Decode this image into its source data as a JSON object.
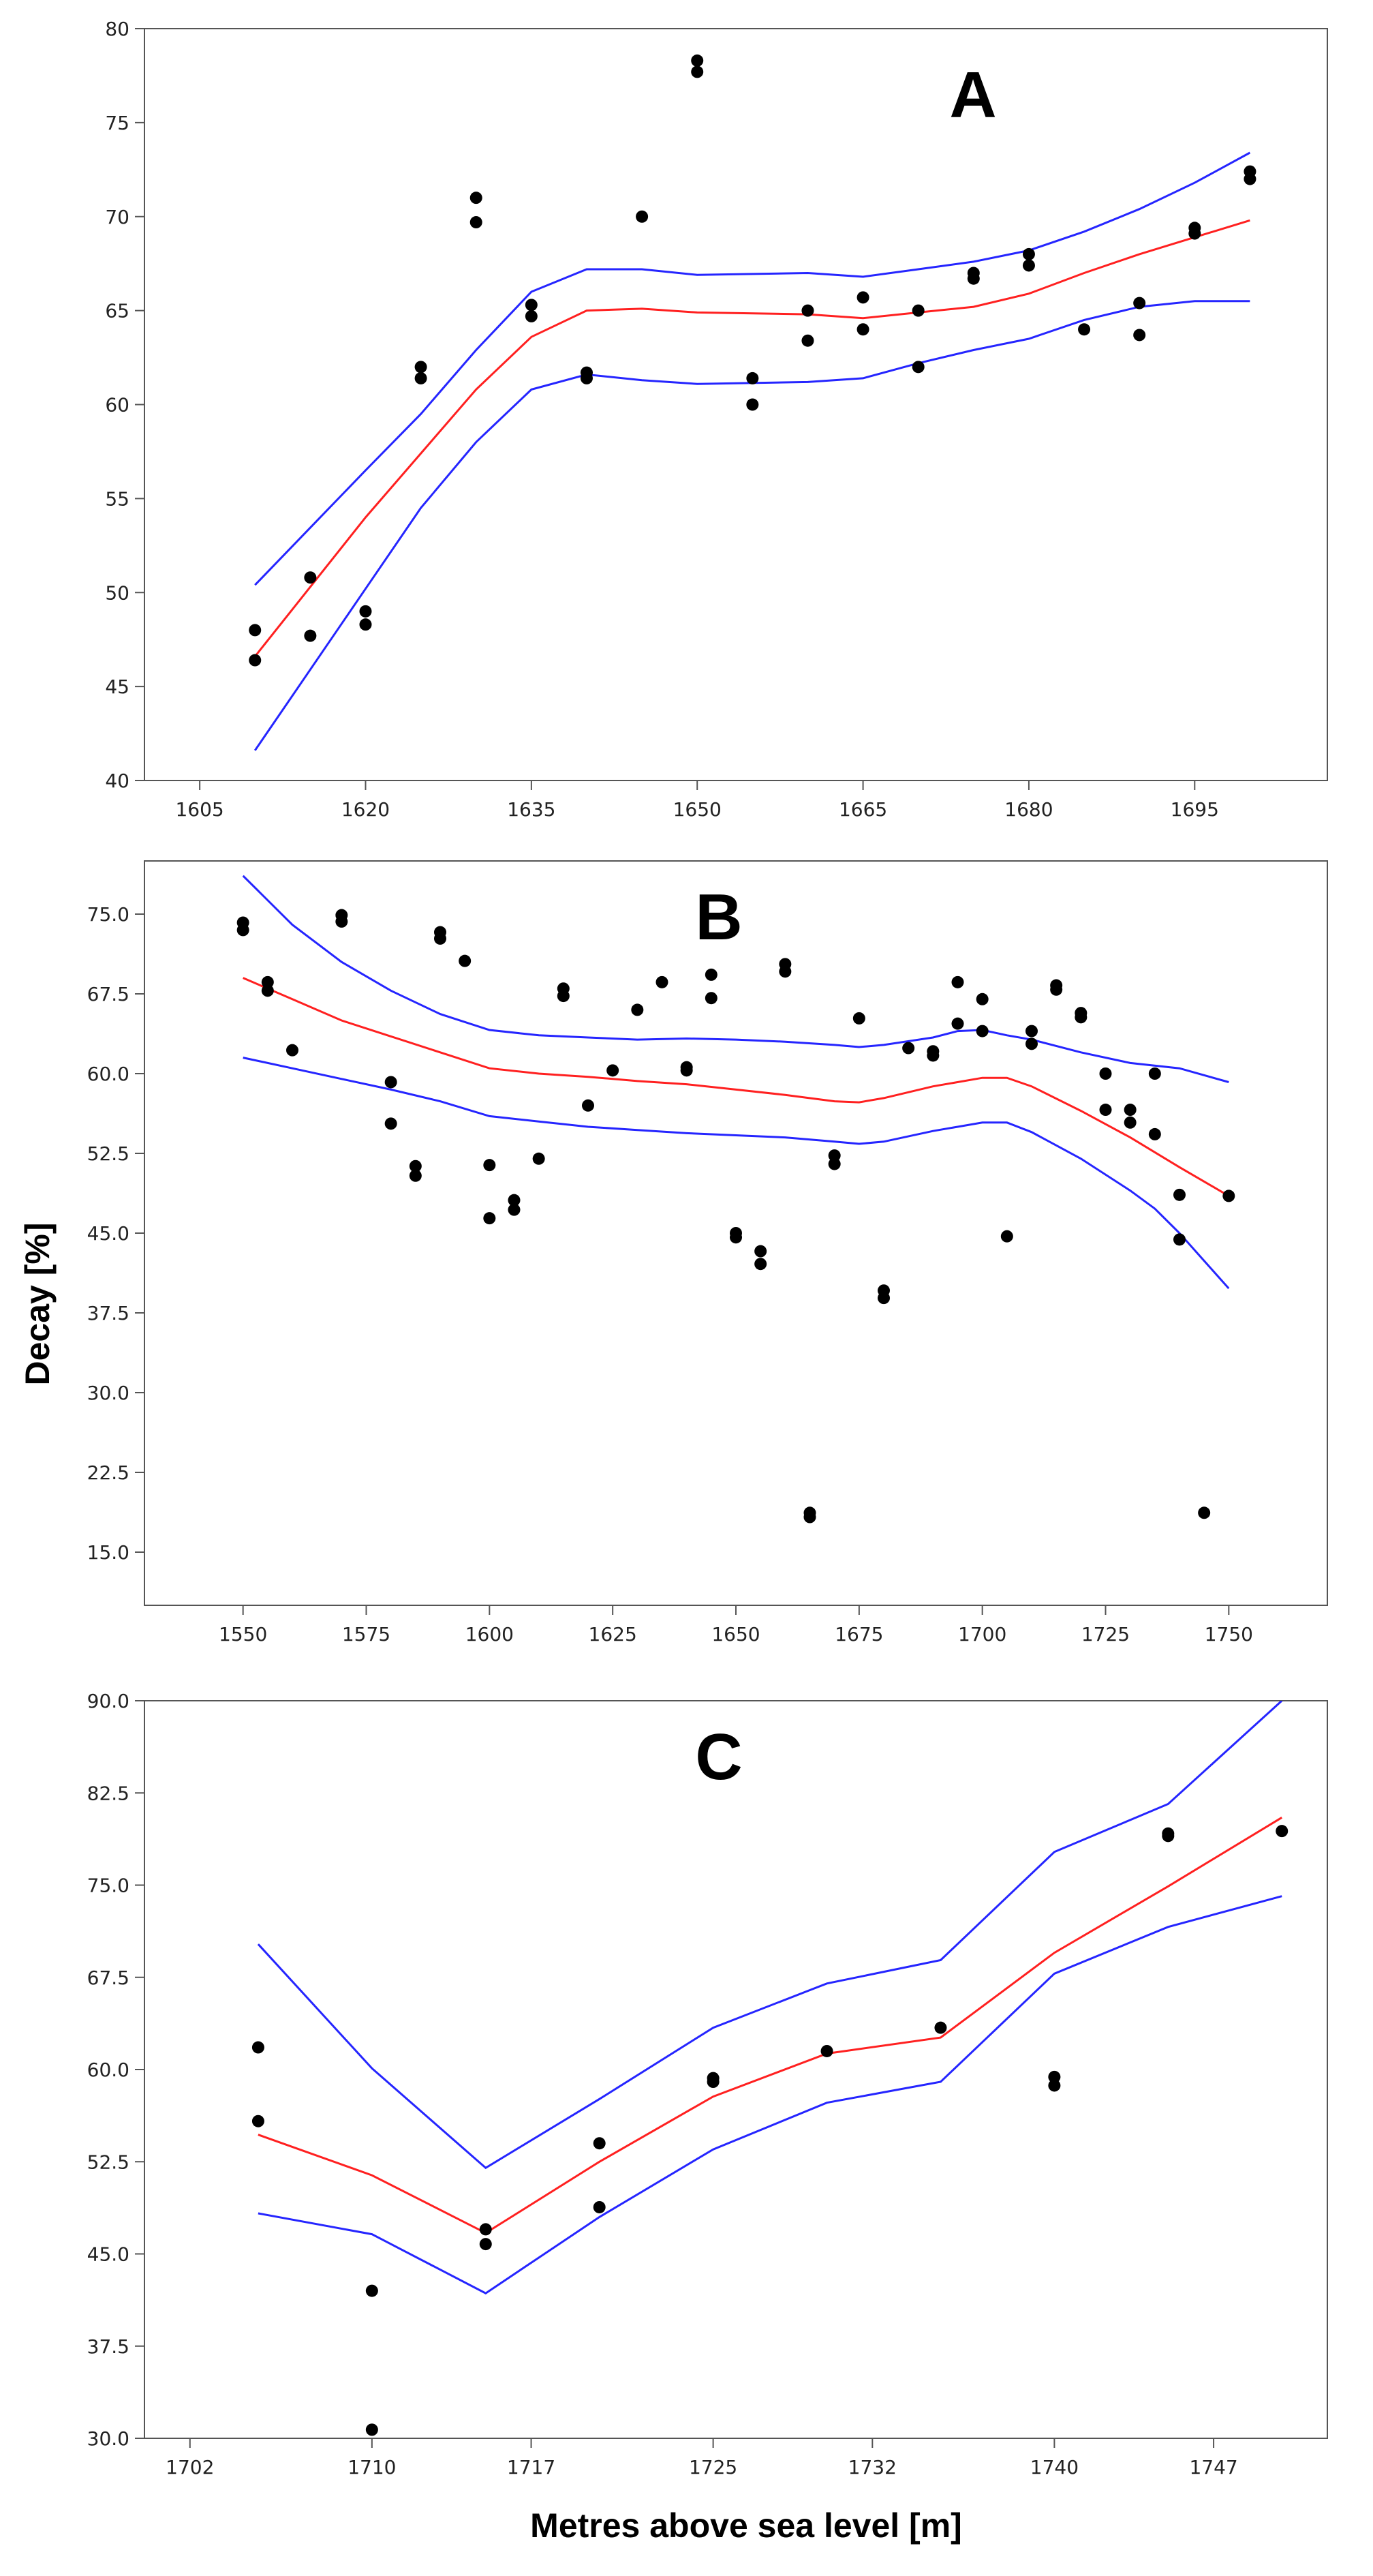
{
  "figure": {
    "ylabel": "Decay [%]",
    "xlabel": "Metres above sea level [m]"
  },
  "colors": {
    "fit": "#ff2020",
    "ci": "#2525ff",
    "points": "#000000",
    "frame": "#555555"
  },
  "chart_data": [
    {
      "type": "scatter",
      "panel": "A",
      "xlim": [
        1600,
        1707
      ],
      "ylim": [
        40,
        80
      ],
      "xticks": [
        "1605",
        "1620",
        "1635",
        "1650",
        "1665",
        "1680",
        "1695"
      ],
      "yticks": [
        "40",
        "45",
        "50",
        "55",
        "60",
        "65",
        "70",
        "75",
        "80"
      ],
      "points": [
        [
          1610,
          48.0
        ],
        [
          1610,
          46.4
        ],
        [
          1615,
          50.8
        ],
        [
          1615,
          47.7
        ],
        [
          1620,
          49.0
        ],
        [
          1620,
          48.3
        ],
        [
          1625,
          62.0
        ],
        [
          1625,
          61.4
        ],
        [
          1630,
          71.0
        ],
        [
          1630,
          69.7
        ],
        [
          1635,
          65.3
        ],
        [
          1635,
          64.7
        ],
        [
          1640,
          61.7
        ],
        [
          1640,
          61.4
        ],
        [
          1645,
          70.0
        ],
        [
          1650,
          78.3
        ],
        [
          1650,
          77.7
        ],
        [
          1655,
          61.4
        ],
        [
          1655,
          60.0
        ],
        [
          1660,
          65.0
        ],
        [
          1660,
          63.4
        ],
        [
          1665,
          65.7
        ],
        [
          1665,
          64.0
        ],
        [
          1670,
          65.0
        ],
        [
          1670,
          62.0
        ],
        [
          1675,
          67.0
        ],
        [
          1675,
          66.7
        ],
        [
          1680,
          68.0
        ],
        [
          1680,
          67.4
        ],
        [
          1685,
          64.0
        ],
        [
          1690,
          65.4
        ],
        [
          1690,
          63.7
        ],
        [
          1695,
          69.4
        ],
        [
          1695,
          69.1
        ],
        [
          1700,
          72.4
        ],
        [
          1700,
          72.0
        ]
      ],
      "fit": [
        [
          1610,
          46.6
        ],
        [
          1620,
          54.0
        ],
        [
          1630,
          60.8
        ],
        [
          1635,
          63.6
        ],
        [
          1640,
          65.0
        ],
        [
          1645,
          65.1
        ],
        [
          1650,
          64.9
        ],
        [
          1660,
          64.8
        ],
        [
          1665,
          64.6
        ],
        [
          1670,
          64.9
        ],
        [
          1675,
          65.2
        ],
        [
          1680,
          65.9
        ],
        [
          1685,
          67.0
        ],
        [
          1690,
          68.0
        ],
        [
          1695,
          68.9
        ],
        [
          1700,
          69.8
        ]
      ],
      "upper": [
        [
          1610,
          50.4
        ],
        [
          1620,
          56.5
        ],
        [
          1625,
          59.5
        ],
        [
          1630,
          62.9
        ],
        [
          1635,
          66.0
        ],
        [
          1640,
          67.2
        ],
        [
          1645,
          67.2
        ],
        [
          1650,
          66.9
        ],
        [
          1660,
          67.0
        ],
        [
          1665,
          66.8
        ],
        [
          1670,
          67.2
        ],
        [
          1675,
          67.6
        ],
        [
          1680,
          68.2
        ],
        [
          1685,
          69.2
        ],
        [
          1690,
          70.4
        ],
        [
          1695,
          71.8
        ],
        [
          1700,
          73.4
        ]
      ],
      "lower": [
        [
          1610,
          41.6
        ],
        [
          1620,
          50.2
        ],
        [
          1625,
          54.5
        ],
        [
          1630,
          58.0
        ],
        [
          1635,
          60.8
        ],
        [
          1640,
          61.6
        ],
        [
          1645,
          61.3
        ],
        [
          1650,
          61.1
        ],
        [
          1660,
          61.2
        ],
        [
          1665,
          61.4
        ],
        [
          1670,
          62.2
        ],
        [
          1675,
          62.9
        ],
        [
          1680,
          63.5
        ],
        [
          1685,
          64.5
        ],
        [
          1690,
          65.2
        ],
        [
          1695,
          65.5
        ],
        [
          1700,
          65.5
        ]
      ]
    },
    {
      "type": "scatter",
      "panel": "B",
      "xlim": [
        1530,
        1770
      ],
      "ylim": [
        10,
        80
      ],
      "xticks": [
        "1550",
        "1575",
        "1600",
        "1625",
        "1650",
        "1675",
        "1700",
        "1725",
        "1750"
      ],
      "yticks": [
        "15.0",
        "22.5",
        "30.0",
        "37.5",
        "45.0",
        "52.5",
        "60.0",
        "67.5",
        "75.0"
      ],
      "points": [
        [
          1550,
          74.2
        ],
        [
          1550,
          73.5
        ],
        [
          1555,
          68.6
        ],
        [
          1555,
          67.8
        ],
        [
          1560,
          62.2
        ],
        [
          1570,
          74.9
        ],
        [
          1570,
          74.3
        ],
        [
          1580,
          59.2
        ],
        [
          1580,
          55.3
        ],
        [
          1585,
          51.3
        ],
        [
          1585,
          50.4
        ],
        [
          1590,
          73.3
        ],
        [
          1590,
          72.7
        ],
        [
          1595,
          70.6
        ],
        [
          1600,
          51.4
        ],
        [
          1600,
          46.4
        ],
        [
          1605,
          48.1
        ],
        [
          1605,
          47.2
        ],
        [
          1610,
          52.0
        ],
        [
          1615,
          68.0
        ],
        [
          1615,
          67.3
        ],
        [
          1620,
          57.0
        ],
        [
          1625,
          60.3
        ],
        [
          1630,
          66.0
        ],
        [
          1635,
          68.6
        ],
        [
          1640,
          60.6
        ],
        [
          1640,
          60.3
        ],
        [
          1645,
          69.3
        ],
        [
          1645,
          67.1
        ],
        [
          1650,
          45.0
        ],
        [
          1650,
          44.6
        ],
        [
          1655,
          43.3
        ],
        [
          1655,
          42.1
        ],
        [
          1660,
          70.3
        ],
        [
          1660,
          69.6
        ],
        [
          1665,
          18.7
        ],
        [
          1665,
          18.3
        ],
        [
          1670,
          52.3
        ],
        [
          1670,
          51.5
        ],
        [
          1675,
          65.2
        ],
        [
          1680,
          39.6
        ],
        [
          1680,
          38.9
        ],
        [
          1685,
          62.4
        ],
        [
          1690,
          62.1
        ],
        [
          1690,
          61.7
        ],
        [
          1695,
          68.6
        ],
        [
          1695,
          64.7
        ],
        [
          1700,
          67.0
        ],
        [
          1700,
          64.0
        ],
        [
          1705,
          44.7
        ],
        [
          1710,
          64.0
        ],
        [
          1710,
          62.8
        ],
        [
          1715,
          68.3
        ],
        [
          1715,
          67.9
        ],
        [
          1720,
          65.7
        ],
        [
          1720,
          65.3
        ],
        [
          1725,
          60.0
        ],
        [
          1725,
          56.6
        ],
        [
          1730,
          56.6
        ],
        [
          1730,
          55.4
        ],
        [
          1735,
          60.0
        ],
        [
          1735,
          54.3
        ],
        [
          1740,
          48.6
        ],
        [
          1740,
          44.4
        ],
        [
          1745,
          18.7
        ],
        [
          1750,
          48.5
        ]
      ],
      "fit": [
        [
          1550,
          69.0
        ],
        [
          1560,
          67.0
        ],
        [
          1570,
          65.0
        ],
        [
          1580,
          63.5
        ],
        [
          1590,
          62.0
        ],
        [
          1600,
          60.5
        ],
        [
          1610,
          60.0
        ],
        [
          1620,
          59.7
        ],
        [
          1630,
          59.3
        ],
        [
          1640,
          59.0
        ],
        [
          1650,
          58.5
        ],
        [
          1660,
          58.0
        ],
        [
          1670,
          57.4
        ],
        [
          1675,
          57.3
        ],
        [
          1680,
          57.7
        ],
        [
          1690,
          58.8
        ],
        [
          1700,
          59.6
        ],
        [
          1705,
          59.6
        ],
        [
          1710,
          58.8
        ],
        [
          1720,
          56.5
        ],
        [
          1730,
          54.0
        ],
        [
          1740,
          51.2
        ],
        [
          1750,
          48.5
        ]
      ],
      "upper": [
        [
          1550,
          78.6
        ],
        [
          1560,
          74.0
        ],
        [
          1570,
          70.5
        ],
        [
          1580,
          67.8
        ],
        [
          1590,
          65.6
        ],
        [
          1600,
          64.1
        ],
        [
          1610,
          63.6
        ],
        [
          1620,
          63.4
        ],
        [
          1630,
          63.2
        ],
        [
          1640,
          63.3
        ],
        [
          1650,
          63.2
        ],
        [
          1660,
          63.0
        ],
        [
          1670,
          62.7
        ],
        [
          1675,
          62.5
        ],
        [
          1680,
          62.7
        ],
        [
          1690,
          63.4
        ],
        [
          1695,
          64.0
        ],
        [
          1700,
          64.1
        ],
        [
          1705,
          63.6
        ],
        [
          1710,
          63.2
        ],
        [
          1720,
          62.0
        ],
        [
          1730,
          61.0
        ],
        [
          1740,
          60.5
        ],
        [
          1750,
          59.2
        ]
      ],
      "lower": [
        [
          1550,
          61.5
        ],
        [
          1560,
          60.5
        ],
        [
          1570,
          59.5
        ],
        [
          1580,
          58.5
        ],
        [
          1590,
          57.4
        ],
        [
          1600,
          56.0
        ],
        [
          1610,
          55.5
        ],
        [
          1620,
          55.0
        ],
        [
          1630,
          54.7
        ],
        [
          1640,
          54.4
        ],
        [
          1650,
          54.2
        ],
        [
          1660,
          54.0
        ],
        [
          1670,
          53.6
        ],
        [
          1675,
          53.4
        ],
        [
          1680,
          53.6
        ],
        [
          1690,
          54.6
        ],
        [
          1700,
          55.4
        ],
        [
          1705,
          55.4
        ],
        [
          1710,
          54.5
        ],
        [
          1720,
          52.0
        ],
        [
          1730,
          49.0
        ],
        [
          1735,
          47.3
        ],
        [
          1740,
          45.0
        ],
        [
          1750,
          39.8
        ]
      ]
    },
    {
      "type": "scatter",
      "panel": "C",
      "xlim": [
        1700,
        1752
      ],
      "ylim": [
        30,
        90
      ],
      "xticks": [
        "1702",
        "1710",
        "1717",
        "1725",
        "1732",
        "1740",
        "1747"
      ],
      "yticks": [
        "30.0",
        "37.5",
        "45.0",
        "52.5",
        "60.0",
        "67.5",
        "75.0",
        "82.5",
        "90.0"
      ],
      "points": [
        [
          1705,
          61.8
        ],
        [
          1705,
          55.8
        ],
        [
          1710,
          42.0
        ],
        [
          1710,
          30.7
        ],
        [
          1715,
          47.0
        ],
        [
          1715,
          45.8
        ],
        [
          1720,
          54.0
        ],
        [
          1720,
          48.8
        ],
        [
          1725,
          59.3
        ],
        [
          1725,
          59.0
        ],
        [
          1730,
          61.5
        ],
        [
          1735,
          63.4
        ],
        [
          1740,
          59.4
        ],
        [
          1740,
          58.7
        ],
        [
          1745,
          79.2
        ],
        [
          1745,
          79.0
        ],
        [
          1750,
          79.4
        ]
      ],
      "fit": [
        [
          1705,
          54.7
        ],
        [
          1710,
          51.4
        ],
        [
          1715,
          46.7
        ],
        [
          1720,
          52.5
        ],
        [
          1725,
          57.8
        ],
        [
          1730,
          61.3
        ],
        [
          1735,
          62.6
        ],
        [
          1740,
          69.5
        ],
        [
          1745,
          74.9
        ],
        [
          1750,
          80.5
        ]
      ],
      "upper": [
        [
          1705,
          70.2
        ],
        [
          1710,
          60.1
        ],
        [
          1715,
          52.0
        ],
        [
          1720,
          57.6
        ],
        [
          1725,
          63.4
        ],
        [
          1730,
          67.0
        ],
        [
          1735,
          68.9
        ],
        [
          1740,
          77.7
        ],
        [
          1745,
          81.6
        ],
        [
          1750,
          90.0
        ]
      ],
      "lower": [
        [
          1705,
          48.3
        ],
        [
          1710,
          46.6
        ],
        [
          1715,
          41.8
        ],
        [
          1720,
          48.0
        ],
        [
          1725,
          53.5
        ],
        [
          1730,
          57.3
        ],
        [
          1735,
          59.0
        ],
        [
          1740,
          67.8
        ],
        [
          1745,
          71.6
        ],
        [
          1750,
          74.1
        ]
      ]
    }
  ]
}
